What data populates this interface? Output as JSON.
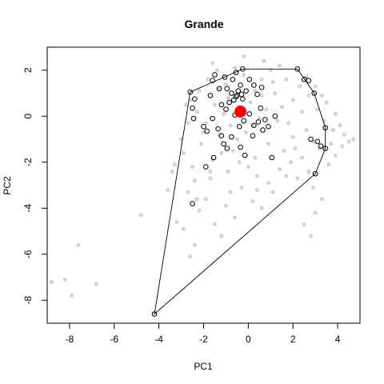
{
  "chart_data": {
    "type": "scatter",
    "title": "Grande",
    "xlabel": "PC1",
    "ylabel": "PC2",
    "xlim": [
      -9,
      5
    ],
    "ylim": [
      -9,
      3
    ],
    "xticks": [
      -8,
      -6,
      -4,
      -2,
      0,
      2,
      4
    ],
    "yticks": [
      -8,
      -6,
      -4,
      -2,
      0,
      2
    ],
    "xtick_labels": [
      "-8",
      "-6",
      "-4",
      "-2",
      "0",
      "2",
      "4"
    ],
    "ytick_labels": [
      "-8",
      "-6",
      "-4",
      "-2",
      "0",
      "2"
    ],
    "colors": {
      "background_points": "#d3d3d3",
      "highlight_points": "#000000",
      "hull": "#000000",
      "centroid": "#ff0000"
    },
    "series": [
      {
        "role": "background",
        "marker": "filled-circle",
        "color": "#d3d3d3",
        "points": [
          [
            -8.8,
            -7.2
          ],
          [
            -8.2,
            -7.1
          ],
          [
            -7.9,
            -7.8
          ],
          [
            -6.8,
            -7.3
          ],
          [
            -7.6,
            -5.6
          ],
          [
            -4.8,
            -4.3
          ],
          [
            -3.6,
            -3.2
          ],
          [
            -3.4,
            -2.4
          ],
          [
            -3.2,
            -4.6
          ],
          [
            -2.6,
            -6.1
          ],
          [
            -2.9,
            -4.9
          ],
          [
            -2.4,
            -5.6
          ],
          [
            -2.7,
            -3.3
          ],
          [
            -2.2,
            -4.1
          ],
          [
            -1.9,
            -3.6
          ],
          [
            -1.5,
            -4.7
          ],
          [
            -1.2,
            -5.2
          ],
          [
            -1.0,
            -3.9
          ],
          [
            -0.6,
            -4.4
          ],
          [
            -0.3,
            -3.1
          ],
          [
            0.2,
            -3.7
          ],
          [
            0.6,
            -4.0
          ],
          [
            1.1,
            -3.3
          ],
          [
            -1.7,
            -2.7
          ],
          [
            -0.9,
            -2.4
          ],
          [
            0.4,
            -2.6
          ],
          [
            1.4,
            -2.3
          ],
          [
            -2.5,
            -2.2
          ],
          [
            -2.9,
            -1.6
          ],
          [
            -2.1,
            -1.2
          ],
          [
            -1.6,
            -1.9
          ],
          [
            -0.7,
            -1.5
          ],
          [
            0.3,
            -1.8
          ],
          [
            0.9,
            -1.2
          ],
          [
            1.6,
            -1.5
          ],
          [
            2.0,
            -0.9
          ],
          [
            1.8,
            -0.3
          ],
          [
            2.4,
            -1.8
          ],
          [
            2.7,
            -2.4
          ],
          [
            2.9,
            -3.1
          ],
          [
            3.0,
            -4.2
          ],
          [
            2.8,
            -5.2
          ],
          [
            2.5,
            -4.7
          ],
          [
            3.3,
            -3.6
          ],
          [
            3.6,
            -2.1
          ],
          [
            3.9,
            -1.7
          ],
          [
            4.2,
            -1.3
          ],
          [
            4.5,
            -1.1
          ],
          [
            4.7,
            -1.0
          ],
          [
            3.8,
            -0.6
          ],
          [
            3.4,
            -0.2
          ],
          [
            3.1,
            0.3
          ],
          [
            3.5,
            0.6
          ],
          [
            3.9,
            0.1
          ],
          [
            4.1,
            -0.4
          ],
          [
            2.7,
            0.9
          ],
          [
            3.0,
            1.3
          ],
          [
            2.6,
            1.7
          ],
          [
            2.3,
            1.3
          ],
          [
            2.0,
            0.7
          ],
          [
            1.5,
            0.4
          ],
          [
            1.2,
            1.0
          ],
          [
            1.7,
            1.6
          ],
          [
            1.0,
            2.0
          ],
          [
            0.6,
            1.6
          ],
          [
            0.3,
            1.1
          ],
          [
            -0.2,
            1.8
          ],
          [
            -0.6,
            2.1
          ],
          [
            -1.0,
            1.4
          ],
          [
            -1.4,
            2.0
          ],
          [
            -1.8,
            1.6
          ],
          [
            -2.2,
            1.1
          ],
          [
            -2.6,
            0.7
          ],
          [
            -2.3,
            0.2
          ],
          [
            -1.9,
            -0.3
          ],
          [
            -1.5,
            0.5
          ],
          [
            -1.1,
            0.1
          ],
          [
            -0.8,
            -0.4
          ],
          [
            -0.4,
            0.4
          ],
          [
            0.1,
            0.6
          ],
          [
            0.5,
            -0.1
          ],
          [
            0.8,
            0.3
          ],
          [
            1.3,
            -0.2
          ],
          [
            -0.1,
            -0.7
          ],
          [
            -0.5,
            -1.0
          ],
          [
            -1.3,
            -0.8
          ],
          [
            -2.0,
            -0.7
          ],
          [
            -2.7,
            -0.3
          ],
          [
            -3.0,
            -1.0
          ],
          [
            -2.8,
            0.5
          ],
          [
            -0.2,
            2.6
          ],
          [
            0.7,
            2.4
          ],
          [
            -1.6,
            2.3
          ],
          [
            1.4,
            2.2
          ],
          [
            2.2,
            -2.7
          ],
          [
            1.9,
            -2.0
          ],
          [
            0.0,
            -2.2
          ],
          [
            -1.2,
            -1.6
          ],
          [
            -2.3,
            -3.6
          ],
          [
            0.9,
            -2.9
          ],
          [
            -0.4,
            -2.0
          ],
          [
            3.2,
            -1.4
          ],
          [
            2.6,
            -0.6
          ],
          [
            2.9,
            -1.1
          ],
          [
            3.7,
            -1.2
          ],
          [
            4.3,
            -0.8
          ],
          [
            -1.7,
            -2.4
          ],
          [
            -0.8,
            -3.3
          ],
          [
            0.2,
            -0.4
          ],
          [
            0.6,
            0.9
          ],
          [
            -0.9,
            0.8
          ],
          [
            1.1,
            1.5
          ],
          [
            -1.3,
            1.2
          ],
          [
            2.4,
            0.2
          ],
          [
            3.3,
            0.9
          ],
          [
            2.1,
            -1.4
          ],
          [
            -3.3,
            -2.1
          ],
          [
            -2.4,
            -2.8
          ],
          [
            1.7,
            -2.6
          ],
          [
            0.4,
            -3.2
          ]
        ]
      },
      {
        "role": "highlight",
        "marker": "open-circle",
        "color": "#000000",
        "points": [
          [
            -2.6,
            1.05
          ],
          [
            -2.4,
            0.75
          ],
          [
            -2.5,
            0.35
          ],
          [
            -2.45,
            -0.1
          ],
          [
            -2.0,
            -0.45
          ],
          [
            -1.85,
            -0.65
          ],
          [
            -1.7,
            0.9
          ],
          [
            -1.6,
            1.55
          ],
          [
            -1.5,
            1.8
          ],
          [
            -1.3,
            1.2
          ],
          [
            -1.2,
            0.5
          ],
          [
            -1.05,
            1.7
          ],
          [
            -0.95,
            1.2
          ],
          [
            -0.85,
            0.6
          ],
          [
            -0.7,
            1.6
          ],
          [
            -0.55,
            1.9
          ],
          [
            -0.5,
            0.9
          ],
          [
            -0.35,
            1.35
          ],
          [
            -0.25,
            0.75
          ],
          [
            -0.1,
            1.1
          ],
          [
            0.05,
            1.6
          ],
          [
            0.25,
            1.35
          ],
          [
            0.4,
            0.95
          ],
          [
            0.6,
            1.25
          ],
          [
            -1.6,
            -0.1
          ],
          [
            -1.35,
            -0.55
          ],
          [
            -1.2,
            -0.85
          ],
          [
            -1.1,
            -1.2
          ],
          [
            -0.95,
            -1.4
          ],
          [
            -0.75,
            -0.9
          ],
          [
            -0.6,
            0.05
          ],
          [
            -0.4,
            -0.45
          ],
          [
            -0.2,
            -0.2
          ],
          [
            0.05,
            0.1
          ],
          [
            0.25,
            -0.4
          ],
          [
            0.45,
            -0.25
          ],
          [
            0.55,
            0.35
          ],
          [
            0.75,
            -0.15
          ],
          [
            0.9,
            -0.45
          ],
          [
            1.2,
            0.0
          ],
          [
            0.65,
            -0.6
          ],
          [
            0.2,
            -0.85
          ],
          [
            -1.9,
            -2.2
          ],
          [
            -1.55,
            -1.8
          ],
          [
            -0.35,
            -1.35
          ],
          [
            -0.15,
            -1.7
          ],
          [
            1.05,
            -1.8
          ],
          [
            -2.5,
            -3.8
          ],
          [
            2.2,
            2.05
          ],
          [
            2.5,
            1.6
          ],
          [
            2.7,
            1.55
          ],
          [
            2.95,
            1.0
          ],
          [
            3.45,
            -0.5
          ],
          [
            3.1,
            -1.1
          ],
          [
            3.25,
            -1.3
          ],
          [
            2.8,
            -1.0
          ],
          [
            3.45,
            -1.4
          ],
          [
            3.0,
            -2.5
          ],
          [
            -4.2,
            -8.6
          ],
          [
            -0.25,
            2.05
          ],
          [
            -1.0,
            0.3
          ],
          [
            -0.75,
            1.0
          ],
          [
            -0.55,
            0.85
          ],
          [
            -0.45,
            1.1
          ],
          [
            -0.3,
            0.95
          ],
          [
            -0.65,
            0.7
          ]
        ]
      }
    ],
    "hull": [
      [
        -4.2,
        -8.6
      ],
      [
        -2.6,
        1.05
      ],
      [
        -0.25,
        2.05
      ],
      [
        2.2,
        2.05
      ],
      [
        2.95,
        1.0
      ],
      [
        3.45,
        -0.5
      ],
      [
        3.45,
        -1.4
      ],
      [
        3.0,
        -2.5
      ]
    ],
    "centroid": [
      -0.35,
      0.2
    ]
  }
}
